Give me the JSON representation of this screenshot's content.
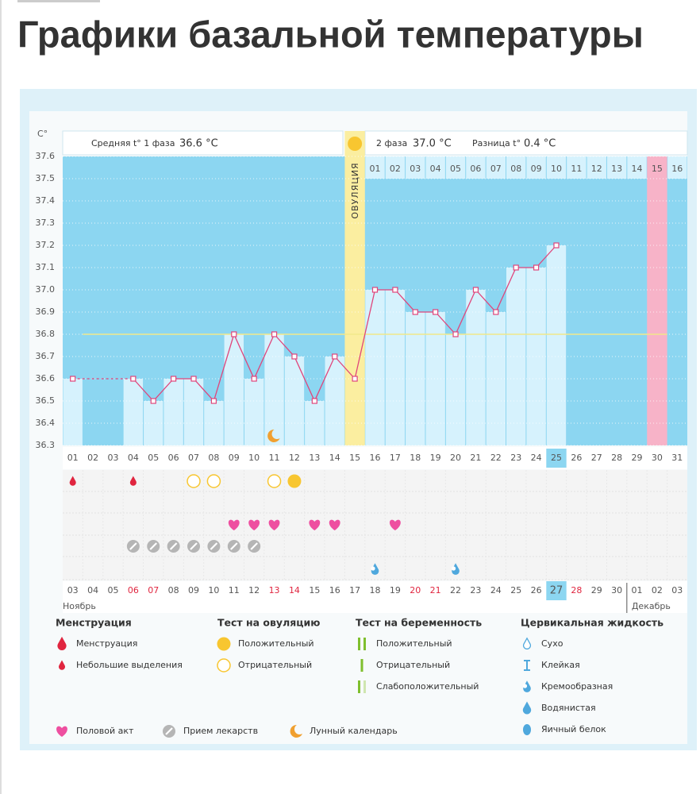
{
  "title": "Графики базальной температуры",
  "chart_data": {
    "type": "line",
    "y_unit": "C°",
    "summary": {
      "phase1_label": "Средняя t° 1 фаза",
      "phase1_value": "36.6 °C",
      "phase2_label": "2 фаза",
      "phase2_value": "37.0 °C",
      "diff_label": "Разница t°",
      "diff_value": "0.4 °C"
    },
    "ovulation_label": "ОВУЛЯЦИЯ",
    "ovulation_day": "15",
    "marked_day": "30",
    "current_day": "25",
    "moon_day": "11",
    "categories": [
      "01",
      "02",
      "03",
      "04",
      "05",
      "06",
      "07",
      "08",
      "09",
      "10",
      "11",
      "12",
      "13",
      "14",
      "15",
      "16",
      "17",
      "18",
      "19",
      "20",
      "21",
      "22",
      "23",
      "24",
      "25",
      "26",
      "27",
      "28",
      "29",
      "30",
      "31"
    ],
    "cycle_days": [
      null,
      null,
      null,
      null,
      null,
      null,
      null,
      null,
      null,
      null,
      null,
      null,
      null,
      null,
      null,
      "01",
      "02",
      "03",
      "04",
      "05",
      "06",
      "07",
      "08",
      "09",
      "10",
      "11",
      "12",
      "13",
      "14",
      "15",
      "16"
    ],
    "values": [
      36.6,
      null,
      null,
      36.6,
      36.5,
      36.6,
      36.6,
      36.5,
      36.8,
      36.6,
      36.8,
      36.7,
      36.5,
      36.7,
      36.6,
      37.0,
      37.0,
      36.9,
      36.9,
      36.8,
      37.0,
      36.9,
      37.1,
      37.1,
      37.2,
      null,
      null,
      null,
      null,
      null,
      null
    ],
    "color": "#e0457b",
    "coverline": 36.8,
    "coverline_color": "#f1e88a",
    "ylim": [
      36.3,
      37.6
    ],
    "yticks": [
      37.6,
      37.5,
      37.4,
      37.3,
      37.2,
      37.1,
      {
        "value": 37.0,
        "label": "37.0"
      },
      36.9,
      36.8,
      36.7,
      36.6,
      36.5,
      36.4,
      36.3
    ],
    "grid": true,
    "event_rows": [
      [
        {
          "day": "01",
          "icon": "drop-red"
        },
        {
          "day": "04",
          "icon": "drop-red"
        },
        {
          "day": "07",
          "icon": "circle-open"
        },
        {
          "day": "08",
          "icon": "circle-open"
        },
        {
          "day": "11",
          "icon": "circle-open"
        },
        {
          "day": "12",
          "icon": "circle-filled"
        }
      ],
      [],
      [
        {
          "day": "09",
          "icon": "heart"
        },
        {
          "day": "10",
          "icon": "heart"
        },
        {
          "day": "11",
          "icon": "heart"
        },
        {
          "day": "13",
          "icon": "heart"
        },
        {
          "day": "14",
          "icon": "heart"
        },
        {
          "day": "17",
          "icon": "heart"
        }
      ],
      [
        {
          "day": "04",
          "icon": "pill"
        },
        {
          "day": "05",
          "icon": "pill"
        },
        {
          "day": "06",
          "icon": "pill"
        },
        {
          "day": "07",
          "icon": "pill"
        },
        {
          "day": "08",
          "icon": "pill"
        },
        {
          "day": "09",
          "icon": "pill"
        },
        {
          "day": "10",
          "icon": "pill"
        }
      ],
      [
        {
          "day": "16",
          "icon": "drop-creamy"
        },
        {
          "day": "20",
          "icon": "drop-creamy"
        }
      ]
    ]
  },
  "calendar": {
    "dates": [
      "03",
      "04",
      "05",
      "06",
      "07",
      "08",
      "09",
      "10",
      "11",
      "12",
      "13",
      "14",
      "15",
      "16",
      "17",
      "18",
      "19",
      "20",
      "21",
      "22",
      "23",
      "24",
      "25",
      "26",
      "27",
      "28",
      "29",
      "30",
      "01",
      "02",
      "03"
    ],
    "weekend": [
      false,
      false,
      false,
      true,
      true,
      false,
      false,
      false,
      false,
      false,
      true,
      true,
      false,
      false,
      false,
      false,
      false,
      true,
      true,
      false,
      false,
      false,
      false,
      false,
      false,
      true,
      false,
      false,
      false,
      false,
      false
    ],
    "today": "27",
    "month_start": "Ноябрь",
    "month_next": "Декабрь"
  },
  "legend": {
    "groups": [
      {
        "title": "Менструация",
        "items": [
          {
            "label": "Менструация",
            "icon": "drop-red-big"
          },
          {
            "label": "Небольшие выделения",
            "icon": "drop-red"
          }
        ]
      },
      {
        "title": "Тест на овуляцию",
        "items": [
          {
            "label": "Положительный",
            "icon": "circle-filled"
          },
          {
            "label": "Отрицательный",
            "icon": "circle-open"
          }
        ]
      },
      {
        "title": "Тест на беременность",
        "items": [
          {
            "label": "Положительный",
            "icon": "bars-double"
          },
          {
            "label": "Отрицательный",
            "icon": "bar"
          },
          {
            "label": "Слабоположительный",
            "icon": "bars-light"
          }
        ]
      },
      {
        "title": "Цервикальная жидкость",
        "items": [
          {
            "label": "Сухо",
            "icon": "drop-open"
          },
          {
            "label": "Клейкая",
            "icon": "sticky"
          },
          {
            "label": "Кремообразная",
            "icon": "drop-creamy"
          },
          {
            "label": "Водянистая",
            "icon": "drop-blue"
          },
          {
            "label": "Яичный белок",
            "icon": "oval-blue"
          }
        ]
      }
    ],
    "other": [
      {
        "label": "Половой акт",
        "icon": "heart"
      },
      {
        "label": "Прием лекарств",
        "icon": "pill"
      },
      {
        "label": "Лунный календарь",
        "icon": "moon"
      }
    ]
  }
}
